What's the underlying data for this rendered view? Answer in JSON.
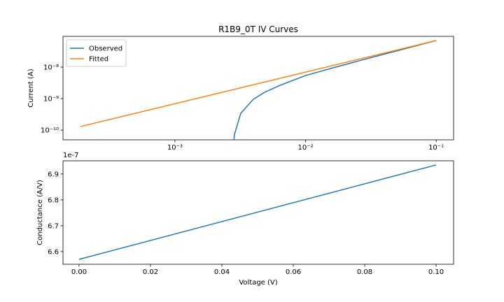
{
  "chart_data": [
    {
      "type": "line",
      "title": "R1B9_0T IV Curves",
      "y_label": "Current (A)",
      "x_log": true,
      "y_log": true,
      "legend": "upper left",
      "xlim": [
        0.000139,
        0.136
      ],
      "ylim": [
        4.9e-11,
        9.5e-08
      ],
      "xticks": [
        {
          "value": 0.001,
          "label": "10⁻³"
        },
        {
          "value": 0.01,
          "label": "10⁻²"
        },
        {
          "value": 0.1,
          "label": "10⁻¹"
        }
      ],
      "yticks": [
        {
          "value": 1e-10,
          "label": "10⁻¹⁰"
        },
        {
          "value": 1e-09,
          "label": "10⁻⁹"
        },
        {
          "value": 1e-08,
          "label": "10⁻⁸"
        }
      ],
      "series": [
        {
          "name": "Observed",
          "color": "#1f77b4",
          "x": [
            0.0028,
            0.00286,
            0.00319,
            0.00398,
            0.00485,
            0.00637,
            0.01,
            0.017,
            0.0281,
            0.1
          ],
          "values": [
            3e-11,
            7.4e-11,
            3.41e-10,
            9.5e-10,
            1.58e-09,
            2.64e-09,
            5.4e-09,
            1e-08,
            1.75e-08,
            6.98e-08
          ]
        },
        {
          "name": "Fitted",
          "color": "#ff7f0e",
          "x": [
            0.000189,
            0.1
          ],
          "values": [
            1.29e-10,
            6.98e-08
          ]
        }
      ]
    },
    {
      "type": "line",
      "x_label": "Voltage (V)",
      "y_label": "Conductance (A/V)",
      "offset_text": "1e-7",
      "x_log": false,
      "y_log": false,
      "xlim": [
        -0.0045,
        0.1049
      ],
      "ylim": [
        6.551,
        6.951
      ],
      "xticks": [
        {
          "value": 0,
          "label": "0.00"
        },
        {
          "value": 0.02,
          "label": "0.02"
        },
        {
          "value": 0.04,
          "label": "0.04"
        },
        {
          "value": 0.06,
          "label": "0.06"
        },
        {
          "value": 0.08,
          "label": "0.08"
        },
        {
          "value": 0.1,
          "label": "0.10"
        }
      ],
      "yticks": [
        6.6,
        6.7,
        6.8,
        6.9
      ],
      "series": [
        {
          "color": "#1f77b4",
          "x": [
            0,
            0.1
          ],
          "values": [
            6.57,
            6.935
          ]
        }
      ]
    }
  ]
}
